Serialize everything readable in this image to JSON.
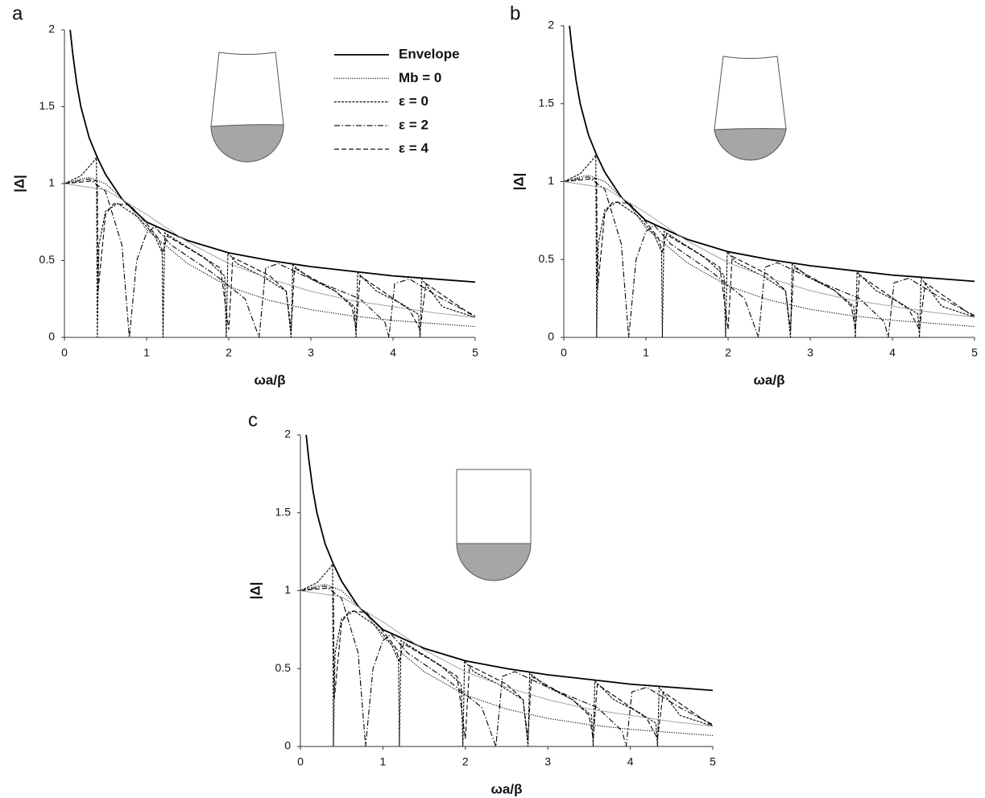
{
  "chart_data": [
    {
      "type": "line",
      "panel_label": "a",
      "x_label": "ωa/β",
      "y_label": "|Δ|",
      "xlim": [
        0,
        5
      ],
      "ylim": [
        0,
        2
      ],
      "xticks": [
        0,
        1,
        2,
        3,
        4,
        5
      ],
      "yticks": [
        0,
        0.5,
        1,
        1.5,
        2
      ],
      "legend": "upper right",
      "series": [
        {
          "name": "Envelope",
          "color": "#000000",
          "style": "solid",
          "x": [
            0.07,
            0.1,
            0.15,
            0.2,
            0.3,
            0.4,
            0.5,
            0.7,
            1,
            1.5,
            2,
            2.5,
            3,
            3.5,
            4,
            4.5,
            5
          ],
          "values": [
            2,
            1.85,
            1.65,
            1.5,
            1.3,
            1.17,
            1.06,
            0.9,
            0.75,
            0.63,
            0.55,
            0.5,
            0.46,
            0.43,
            0.4,
            0.38,
            0.36
          ]
        },
        {
          "name": "Mb = 0",
          "color": "#000000",
          "style": "dotted",
          "x": [
            0,
            0.2,
            0.3,
            0.5,
            0.8,
            1,
            1.5,
            2,
            2.5,
            3,
            3.5,
            4,
            4.5,
            5
          ],
          "values": [
            1,
            1.03,
            1.04,
            1,
            0.85,
            0.7,
            0.48,
            0.33,
            0.24,
            0.18,
            0.14,
            0.11,
            0.09,
            0.07
          ]
        },
        {
          "name": "ε = 0",
          "color": "#000000",
          "style": "short-dash",
          "x": [
            0,
            0.2,
            0.35,
            0.39,
            0.4,
            0.42,
            0.5,
            0.65,
            0.9,
            1.1,
            1.19,
            1.2,
            1.22,
            1.4,
            1.7,
            1.95,
            1.97,
            1.99,
            2.1,
            2.4,
            2.7,
            2.76,
            2.78,
            3,
            3.3,
            3.53,
            3.55,
            3.57,
            3.8,
            4.1,
            4.31,
            4.33,
            4.35,
            4.6,
            5
          ],
          "values": [
            1,
            1.05,
            1.14,
            1.17,
            0,
            0.6,
            0.82,
            0.87,
            0.78,
            0.66,
            0.55,
            0,
            0.68,
            0.62,
            0.52,
            0.4,
            0,
            0.55,
            0.48,
            0.4,
            0.3,
            0,
            0.47,
            0.38,
            0.3,
            0.2,
            0,
            0.42,
            0.3,
            0.22,
            0.15,
            0,
            0.38,
            0.2,
            0.13
          ]
        },
        {
          "name": "ε = 2",
          "color": "#000000",
          "style": "dash-dot",
          "x": [
            0,
            0.3,
            0.5,
            0.7,
            0.79,
            0.88,
            1,
            1.1,
            1.3,
            1.8,
            2.2,
            2.37,
            2.45,
            2.6,
            3,
            3.6,
            3.9,
            3.95,
            4.02,
            4.2,
            4.6,
            5
          ],
          "values": [
            1,
            1.03,
            0.95,
            0.6,
            0,
            0.5,
            0.68,
            0.72,
            0.6,
            0.42,
            0.25,
            0,
            0.45,
            0.48,
            0.38,
            0.25,
            0.1,
            0,
            0.35,
            0.38,
            0.25,
            0.14
          ]
        },
        {
          "name": "ε = 4",
          "color": "#000000",
          "style": "long-dash",
          "x": [
            0,
            0.4,
            0.41,
            0.5,
            0.6,
            0.8,
            1,
            1.15,
            1.2,
            1.25,
            1.6,
            1.9,
            2,
            2.05,
            2.5,
            2.7,
            2.76,
            2.8,
            3.3,
            3.5,
            3.55,
            3.6,
            4.2,
            4.33,
            4.4,
            5
          ],
          "values": [
            1,
            1.02,
            0.3,
            0.8,
            0.87,
            0.86,
            0.74,
            0.64,
            0.55,
            0.66,
            0.55,
            0.45,
            0.05,
            0.52,
            0.4,
            0.3,
            0.05,
            0.45,
            0.3,
            0.2,
            0.05,
            0.4,
            0.18,
            0.05,
            0.35,
            0.13
          ]
        },
        {
          "color": "#999999",
          "style": "thin",
          "x": [
            0,
            0.5,
            1,
            1.5,
            2,
            2.5,
            3,
            3.5,
            4,
            4.5,
            5
          ],
          "values": [
            1,
            0.96,
            0.8,
            0.62,
            0.48,
            0.38,
            0.3,
            0.24,
            0.2,
            0.16,
            0.13
          ]
        }
      ]
    },
    {
      "type": "line",
      "panel_label": "b",
      "x_label": "ωa/β",
      "y_label": "|Δ|",
      "xlim": [
        0,
        5
      ],
      "ylim": [
        0,
        2
      ],
      "xticks": [
        0,
        1,
        2,
        3,
        4,
        5
      ],
      "yticks": [
        0,
        0.5,
        1,
        1.5,
        2
      ],
      "legend": false,
      "series": [
        {
          "color": "#000000",
          "style": "solid",
          "x": [
            0.07,
            0.1,
            0.15,
            0.2,
            0.3,
            0.4,
            0.5,
            0.7,
            1,
            1.5,
            2,
            2.5,
            3,
            3.5,
            4,
            4.5,
            5
          ],
          "values": [
            2,
            1.85,
            1.65,
            1.5,
            1.3,
            1.17,
            1.06,
            0.9,
            0.75,
            0.63,
            0.55,
            0.5,
            0.46,
            0.43,
            0.4,
            0.38,
            0.36
          ]
        },
        {
          "color": "#000000",
          "style": "dotted",
          "x": [
            0,
            0.2,
            0.3,
            0.5,
            0.8,
            1,
            1.5,
            2,
            2.5,
            3,
            3.5,
            4,
            4.5,
            5
          ],
          "values": [
            1,
            1.03,
            1.04,
            1,
            0.85,
            0.7,
            0.48,
            0.33,
            0.24,
            0.18,
            0.14,
            0.11,
            0.09,
            0.07
          ]
        },
        {
          "color": "#000000",
          "style": "short-dash",
          "x": [
            0,
            0.2,
            0.35,
            0.39,
            0.4,
            0.42,
            0.5,
            0.65,
            0.9,
            1.1,
            1.19,
            1.2,
            1.22,
            1.4,
            1.7,
            1.95,
            1.97,
            1.99,
            2.1,
            2.4,
            2.7,
            2.76,
            2.78,
            3,
            3.3,
            3.53,
            3.55,
            3.57,
            3.8,
            4.1,
            4.31,
            4.33,
            4.35,
            4.6,
            5
          ],
          "values": [
            1,
            1.05,
            1.14,
            1.17,
            0,
            0.6,
            0.82,
            0.87,
            0.78,
            0.66,
            0.55,
            0,
            0.68,
            0.62,
            0.52,
            0.4,
            0,
            0.55,
            0.48,
            0.4,
            0.3,
            0,
            0.47,
            0.38,
            0.3,
            0.2,
            0,
            0.42,
            0.3,
            0.22,
            0.15,
            0,
            0.38,
            0.2,
            0.13
          ]
        },
        {
          "color": "#000000",
          "style": "dash-dot",
          "x": [
            0,
            0.3,
            0.5,
            0.7,
            0.79,
            0.88,
            1,
            1.1,
            1.3,
            1.8,
            2.2,
            2.37,
            2.45,
            2.6,
            3,
            3.6,
            3.9,
            3.95,
            4.02,
            4.2,
            4.6,
            5
          ],
          "values": [
            1,
            1.03,
            0.95,
            0.6,
            0,
            0.5,
            0.68,
            0.72,
            0.6,
            0.42,
            0.25,
            0,
            0.45,
            0.48,
            0.38,
            0.25,
            0.1,
            0,
            0.35,
            0.38,
            0.25,
            0.14
          ]
        },
        {
          "color": "#000000",
          "style": "long-dash",
          "x": [
            0,
            0.4,
            0.41,
            0.5,
            0.6,
            0.8,
            1,
            1.15,
            1.2,
            1.25,
            1.6,
            1.9,
            2,
            2.05,
            2.5,
            2.7,
            2.76,
            2.8,
            3.3,
            3.5,
            3.55,
            3.6,
            4.2,
            4.33,
            4.4,
            5
          ],
          "values": [
            1,
            1.02,
            0.3,
            0.8,
            0.87,
            0.86,
            0.74,
            0.64,
            0.55,
            0.66,
            0.55,
            0.45,
            0.05,
            0.52,
            0.4,
            0.3,
            0.05,
            0.45,
            0.3,
            0.2,
            0.05,
            0.4,
            0.18,
            0.05,
            0.35,
            0.13
          ]
        },
        {
          "color": "#999999",
          "style": "thin",
          "x": [
            0,
            0.5,
            1,
            1.5,
            2,
            2.5,
            3,
            3.5,
            4,
            4.5,
            5
          ],
          "values": [
            1,
            0.96,
            0.8,
            0.62,
            0.48,
            0.38,
            0.3,
            0.24,
            0.2,
            0.16,
            0.13
          ]
        }
      ]
    },
    {
      "type": "line",
      "panel_label": "c",
      "x_label": "ωa/β",
      "y_label": "|Δ|",
      "xlim": [
        0,
        5
      ],
      "ylim": [
        0,
        2
      ],
      "xticks": [
        0,
        1,
        2,
        3,
        4,
        5
      ],
      "yticks": [
        0,
        0.5,
        1,
        1.5,
        2
      ],
      "legend": false,
      "series": [
        {
          "color": "#000000",
          "style": "solid",
          "x": [
            0.07,
            0.1,
            0.15,
            0.2,
            0.3,
            0.4,
            0.5,
            0.7,
            1,
            1.5,
            2,
            2.5,
            3,
            3.5,
            4,
            4.5,
            5
          ],
          "values": [
            2,
            1.85,
            1.65,
            1.5,
            1.3,
            1.17,
            1.06,
            0.9,
            0.75,
            0.63,
            0.55,
            0.5,
            0.46,
            0.43,
            0.4,
            0.38,
            0.36
          ]
        },
        {
          "color": "#000000",
          "style": "dotted",
          "x": [
            0,
            0.2,
            0.3,
            0.5,
            0.8,
            1,
            1.5,
            2,
            2.5,
            3,
            3.5,
            4,
            4.5,
            5
          ],
          "values": [
            1,
            1.03,
            1.04,
            1,
            0.85,
            0.7,
            0.48,
            0.33,
            0.24,
            0.18,
            0.14,
            0.11,
            0.09,
            0.07
          ]
        },
        {
          "color": "#000000",
          "style": "short-dash",
          "x": [
            0,
            0.2,
            0.35,
            0.39,
            0.4,
            0.42,
            0.5,
            0.65,
            0.9,
            1.1,
            1.19,
            1.2,
            1.22,
            1.4,
            1.7,
            1.95,
            1.97,
            1.99,
            2.1,
            2.4,
            2.7,
            2.76,
            2.78,
            3,
            3.3,
            3.53,
            3.55,
            3.57,
            3.8,
            4.1,
            4.31,
            4.33,
            4.35,
            4.6,
            5
          ],
          "values": [
            1,
            1.05,
            1.14,
            1.17,
            0,
            0.6,
            0.82,
            0.87,
            0.78,
            0.66,
            0.55,
            0,
            0.68,
            0.62,
            0.52,
            0.4,
            0,
            0.55,
            0.48,
            0.4,
            0.3,
            0,
            0.47,
            0.38,
            0.3,
            0.2,
            0,
            0.42,
            0.3,
            0.22,
            0.15,
            0,
            0.38,
            0.2,
            0.13
          ]
        },
        {
          "color": "#000000",
          "style": "dash-dot",
          "x": [
            0,
            0.3,
            0.5,
            0.7,
            0.79,
            0.88,
            1,
            1.1,
            1.3,
            1.8,
            2.2,
            2.37,
            2.45,
            2.6,
            3,
            3.6,
            3.9,
            3.95,
            4.02,
            4.2,
            4.6,
            5
          ],
          "values": [
            1,
            1.03,
            0.95,
            0.6,
            0,
            0.5,
            0.68,
            0.72,
            0.6,
            0.42,
            0.25,
            0,
            0.45,
            0.48,
            0.38,
            0.25,
            0.1,
            0,
            0.35,
            0.38,
            0.25,
            0.14
          ]
        },
        {
          "color": "#000000",
          "style": "long-dash",
          "x": [
            0,
            0.4,
            0.41,
            0.5,
            0.6,
            0.8,
            1,
            1.15,
            1.2,
            1.25,
            1.6,
            1.9,
            2,
            2.05,
            2.5,
            2.7,
            2.76,
            2.8,
            3.3,
            3.5,
            3.55,
            3.6,
            4.2,
            4.33,
            4.4,
            5
          ],
          "values": [
            1,
            1.02,
            0.3,
            0.8,
            0.87,
            0.86,
            0.74,
            0.64,
            0.55,
            0.66,
            0.55,
            0.45,
            0.05,
            0.52,
            0.4,
            0.3,
            0.05,
            0.45,
            0.3,
            0.2,
            0.05,
            0.4,
            0.18,
            0.05,
            0.35,
            0.13
          ]
        },
        {
          "color": "#999999",
          "style": "thin",
          "x": [
            0,
            0.5,
            1,
            1.5,
            2,
            2.5,
            3,
            3.5,
            4,
            4.5,
            5
          ],
          "values": [
            1,
            0.96,
            0.8,
            0.62,
            0.48,
            0.38,
            0.3,
            0.24,
            0.2,
            0.16,
            0.13
          ]
        }
      ]
    }
  ]
}
